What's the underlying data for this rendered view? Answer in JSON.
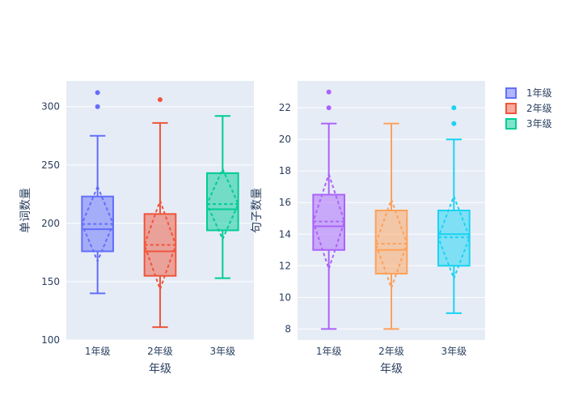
{
  "chart_data": [
    {
      "type": "box",
      "xlabel": "年级",
      "ylabel": "单词数量",
      "categories": [
        "1年级",
        "2年级",
        "3年级"
      ],
      "ylim": [
        100,
        322
      ],
      "yticks": [
        100,
        150,
        200,
        250,
        300
      ],
      "grid": true,
      "boxmean": "sd",
      "series": [
        {
          "name": "1年级",
          "color": "#636efa",
          "q1": 176,
          "median": 195,
          "q3": 223,
          "lowerfence": 140,
          "upperfence": 275,
          "mean": 199.5,
          "sd": 32,
          "outliers": [
            300,
            312
          ]
        },
        {
          "name": "2年级",
          "color": "#ef553b",
          "q1": 155,
          "median": 176,
          "q3": 208,
          "lowerfence": 111,
          "upperfence": 286,
          "mean": 181.5,
          "sd": 38,
          "outliers": [
            306
          ]
        },
        {
          "name": "3年级",
          "color": "#00cc96",
          "q1": 194,
          "median": 212,
          "q3": 243,
          "lowerfence": 153,
          "upperfence": 292,
          "mean": 216.5,
          "sd": 30,
          "outliers": []
        }
      ]
    },
    {
      "type": "box",
      "xlabel": "年级",
      "ylabel": "句子数量",
      "categories": [
        "1年级",
        "2年级",
        "3年级"
      ],
      "ylim": [
        7.3,
        23.7
      ],
      "yticks": [
        8,
        10,
        12,
        14,
        16,
        18,
        20,
        22
      ],
      "grid": true,
      "boxmean": "sd",
      "series": [
        {
          "name": "1年级",
          "color": "#ab63fa",
          "q1": 13,
          "median": 14.5,
          "q3": 16.5,
          "lowerfence": 8,
          "upperfence": 21,
          "mean": 14.8,
          "sd": 3.0,
          "outliers": [
            22,
            23
          ]
        },
        {
          "name": "2年级",
          "color": "#ffa15a",
          "q1": 11.5,
          "median": 13,
          "q3": 15.5,
          "lowerfence": 8,
          "upperfence": 21,
          "mean": 13.4,
          "sd": 2.8,
          "outliers": []
        },
        {
          "name": "3年级",
          "color": "#19d3f3",
          "q1": 12,
          "median": 14,
          "q3": 15.5,
          "lowerfence": 9,
          "upperfence": 20,
          "mean": 13.8,
          "sd": 2.6,
          "outliers": [
            21,
            22
          ]
        }
      ]
    }
  ],
  "legend": {
    "placement": "top-right",
    "items": [
      {
        "label": "1年级",
        "color": "#636efa"
      },
      {
        "label": "2年级",
        "color": "#ef553b"
      },
      {
        "label": "3年级",
        "color": "#00cc96"
      }
    ]
  }
}
